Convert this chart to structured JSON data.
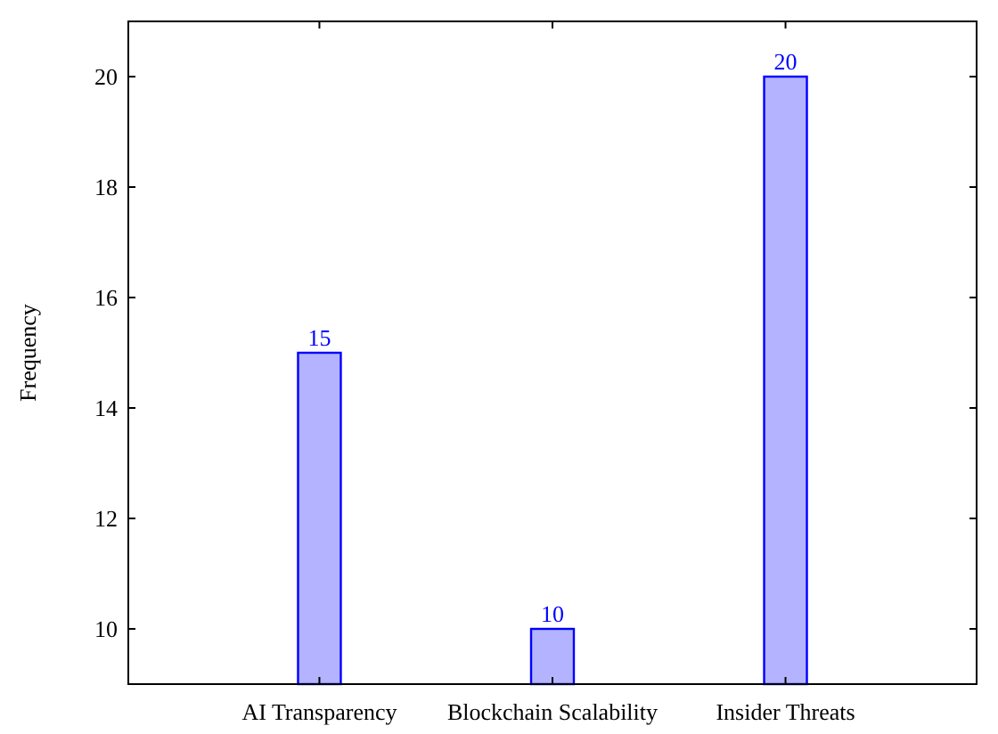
{
  "chart_data": {
    "type": "bar",
    "ylabel": "Frequency",
    "categories": [
      "AI Transparency",
      "Blockchain Scalability",
      "Insider Threats"
    ],
    "values": [
      15,
      10,
      20
    ],
    "color": "#b3b3ff",
    "ylim": [
      9,
      21
    ],
    "yticks": [
      10,
      12,
      14,
      16,
      18,
      20
    ],
    "data_labels": true,
    "grid": false
  }
}
